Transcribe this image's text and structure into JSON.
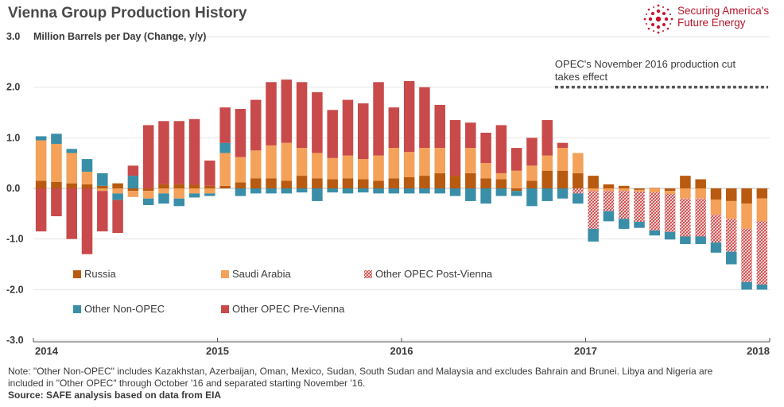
{
  "title": "Vienna Group Production History",
  "logo": {
    "line1": "Securing America's",
    "line2": "Future Energy",
    "icon": "starburst-icon",
    "color": "#c8102e"
  },
  "notes": {
    "line1": "Note: \"Other Non-OPEC\" includes Kazakhstan, Azerbaijan, Oman, Mexico, Sudan, South Sudan and Malaysia and excludes Bahrain and Brunei. Libya and Nigeria are",
    "line2": "included in \"Other OPEC\" through October '16 and separated starting November '16.",
    "source": "Source: SAFE analysis based on data from EIA"
  },
  "chart_data": {
    "type": "bar",
    "stacked": true,
    "ylabel": "Million Barrels per Day (Change, y/y)",
    "ylim": [
      -3.0,
      3.0
    ],
    "yticks": [
      "3.0",
      "2.0",
      "1.0",
      "0.0",
      "-1.0",
      "-2.0",
      "-3.0"
    ],
    "xticks": [
      "2014",
      "2015",
      "2016",
      "2017",
      "2018"
    ],
    "grid": true,
    "annotation": {
      "line1": "OPEC's November 2016 production cut",
      "line2": "takes effect",
      "start_month": "2016-11"
    },
    "months": [
      "2014-01",
      "2014-02",
      "2014-03",
      "2014-04",
      "2014-05",
      "2014-06",
      "2014-07",
      "2014-08",
      "2014-09",
      "2014-10",
      "2014-11",
      "2014-12",
      "2015-01",
      "2015-02",
      "2015-03",
      "2015-04",
      "2015-05",
      "2015-06",
      "2015-07",
      "2015-08",
      "2015-09",
      "2015-10",
      "2015-11",
      "2015-12",
      "2016-01",
      "2016-02",
      "2016-03",
      "2016-04",
      "2016-05",
      "2016-06",
      "2016-07",
      "2016-08",
      "2016-09",
      "2016-10",
      "2016-11",
      "2016-12",
      "2017-01",
      "2017-02",
      "2017-03",
      "2017-04",
      "2017-05",
      "2017-06",
      "2017-07",
      "2017-08",
      "2017-09",
      "2017-10",
      "2017-11",
      "2017-12"
    ],
    "legend": [
      {
        "name": "Russia",
        "color": "#b85a0f"
      },
      {
        "name": "Saudi Arabia",
        "color": "#f4a15a"
      },
      {
        "name": "Other OPEC Post-Vienna",
        "color": "#d04c4c",
        "pattern": "hatch"
      },
      {
        "name": "Other Non-OPEC",
        "color": "#3a8ea8"
      },
      {
        "name": "Other OPEC Pre-Vienna",
        "color": "#c94a4a"
      }
    ],
    "series": [
      {
        "name": "Russia",
        "values": [
          0.15,
          0.13,
          0.1,
          0.08,
          0.05,
          0.1,
          -0.05,
          -0.05,
          0.08,
          0.08,
          0.07,
          0.05,
          0.05,
          0.12,
          0.2,
          0.2,
          0.15,
          0.25,
          0.2,
          0.18,
          0.2,
          0.18,
          0.15,
          0.2,
          0.22,
          0.25,
          0.3,
          0.25,
          0.3,
          0.2,
          0.18,
          -0.05,
          0.15,
          0.35,
          0.35,
          0.3,
          0.25,
          0.08,
          0.05,
          -0.03,
          0.01,
          -0.05,
          0.25,
          0.18,
          -0.22,
          -0.25,
          -0.3,
          -0.2
        ]
      },
      {
        "name": "Saudi Arabia",
        "values": [
          0.8,
          0.75,
          0.6,
          0.25,
          -0.05,
          -0.1,
          -0.12,
          -0.15,
          -0.1,
          -0.2,
          -0.1,
          -0.1,
          0.65,
          0.5,
          0.55,
          0.65,
          0.75,
          0.55,
          0.5,
          0.42,
          0.45,
          0.4,
          0.5,
          0.6,
          0.5,
          0.55,
          0.5,
          0.0,
          0.5,
          0.3,
          0.12,
          0.35,
          0.3,
          0.3,
          0.45,
          0.4,
          -0.05,
          -0.05,
          -0.05,
          -0.03,
          -0.08,
          -0.06,
          -0.2,
          -0.2,
          -0.3,
          -0.35,
          -0.5,
          -0.45
        ]
      },
      {
        "name": "Other OPEC Post-Vienna",
        "values": [
          0,
          0,
          0,
          0,
          0,
          0,
          0,
          0,
          0,
          0,
          0,
          0,
          0,
          0,
          0,
          0,
          0,
          0,
          0,
          0,
          0,
          0,
          0,
          0,
          0,
          0,
          0,
          0,
          0,
          0,
          0,
          0,
          0,
          0,
          0,
          -0.1,
          -0.75,
          -0.4,
          -0.55,
          -0.6,
          -0.75,
          -0.75,
          -0.75,
          -0.75,
          -0.55,
          -0.65,
          -1.05,
          -1.25
        ]
      },
      {
        "name": "Other Non-OPEC",
        "values": [
          0.08,
          0.2,
          0.08,
          0.25,
          0.25,
          -0.13,
          0.25,
          -0.13,
          -0.2,
          -0.15,
          -0.08,
          -0.05,
          0.2,
          -0.15,
          -0.1,
          -0.1,
          -0.1,
          -0.08,
          -0.25,
          -0.08,
          -0.1,
          -0.08,
          -0.1,
          -0.1,
          -0.1,
          -0.1,
          -0.1,
          -0.15,
          -0.25,
          -0.3,
          -0.15,
          -0.1,
          -0.35,
          -0.25,
          -0.2,
          -0.2,
          -0.25,
          -0.2,
          -0.2,
          -0.12,
          -0.1,
          -0.15,
          -0.15,
          -0.15,
          -0.2,
          -0.25,
          -0.15,
          -0.1
        ]
      },
      {
        "name": "Other OPEC Pre-Vienna",
        "values": [
          -0.85,
          -0.55,
          -1.0,
          -1.3,
          -0.8,
          -0.65,
          0.2,
          1.25,
          1.25,
          1.25,
          1.3,
          0.5,
          0.7,
          0.95,
          1.0,
          1.25,
          1.25,
          1.3,
          1.2,
          0.95,
          1.1,
          1.1,
          1.45,
          0.8,
          1.4,
          1.2,
          0.85,
          1.1,
          0.5,
          0.6,
          0.95,
          0.45,
          0.55,
          0.7,
          0.1,
          0,
          0,
          0,
          0,
          0,
          0,
          0,
          0,
          0,
          0,
          0,
          0,
          0
        ]
      }
    ]
  }
}
